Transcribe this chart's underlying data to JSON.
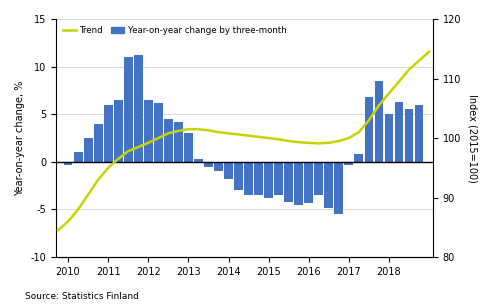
{
  "bar_color": "#4472c4",
  "trend_color": "#c8d400",
  "ylabel_left": "Year-on-year change, %",
  "ylabel_right": "Index (2015=100)",
  "source": "Source: Statistics Finland",
  "ylim_left": [
    -10,
    15
  ],
  "ylim_right": [
    80,
    120
  ],
  "yticks_left": [
    -10,
    -5,
    0,
    5,
    10,
    15
  ],
  "yticks_right": [
    80,
    90,
    100,
    110,
    120
  ],
  "background_color": "#ffffff",
  "grid_color": "#cccccc",
  "bar_x": [
    2010.0,
    2010.25,
    2010.5,
    2010.75,
    2011.0,
    2011.25,
    2011.5,
    2011.75,
    2012.0,
    2012.25,
    2012.5,
    2012.75,
    2013.0,
    2013.25,
    2013.5,
    2013.75,
    2014.0,
    2014.25,
    2014.5,
    2014.75,
    2015.0,
    2015.25,
    2015.5,
    2015.75,
    2016.0,
    2016.25,
    2016.5,
    2016.75,
    2017.0,
    2017.25,
    2017.5,
    2017.75,
    2018.0,
    2018.25,
    2018.5,
    2018.75
  ],
  "bar_values": [
    -0.3,
    1.0,
    2.5,
    4.0,
    6.0,
    6.5,
    11.0,
    11.2,
    6.5,
    6.2,
    4.5,
    4.2,
    3.0,
    0.3,
    -0.5,
    -1.0,
    -1.8,
    -3.0,
    -3.5,
    -3.5,
    -3.8,
    -3.5,
    -4.2,
    -4.5,
    -4.3,
    -3.5,
    -4.8,
    -5.5,
    -0.3,
    0.8,
    6.8,
    8.5,
    5.0,
    6.3,
    5.5,
    6.0
  ],
  "trend_x": [
    2009.75,
    2010.0,
    2010.25,
    2010.5,
    2010.75,
    2011.0,
    2011.25,
    2011.5,
    2011.75,
    2012.0,
    2012.25,
    2012.5,
    2012.75,
    2013.0,
    2013.25,
    2013.5,
    2013.75,
    2014.0,
    2014.25,
    2014.5,
    2014.75,
    2015.0,
    2015.25,
    2015.5,
    2015.75,
    2016.0,
    2016.25,
    2016.5,
    2016.75,
    2017.0,
    2017.25,
    2017.5,
    2017.75,
    2018.0,
    2018.25,
    2018.5,
    2018.75,
    2019.0
  ],
  "trend_y": [
    84.5,
    86.0,
    88.0,
    90.5,
    93.0,
    95.0,
    96.5,
    97.8,
    98.5,
    99.2,
    100.0,
    100.8,
    101.2,
    101.5,
    101.5,
    101.3,
    101.0,
    100.8,
    100.6,
    100.4,
    100.2,
    100.0,
    99.8,
    99.5,
    99.3,
    99.2,
    99.1,
    99.2,
    99.5,
    100.0,
    101.0,
    103.0,
    105.5,
    107.5,
    109.5,
    111.5,
    113.0,
    114.5
  ],
  "xticks": [
    2010,
    2011,
    2012,
    2013,
    2014,
    2015,
    2016,
    2017,
    2018
  ],
  "xlim": [
    2009.7,
    2019.1
  ]
}
